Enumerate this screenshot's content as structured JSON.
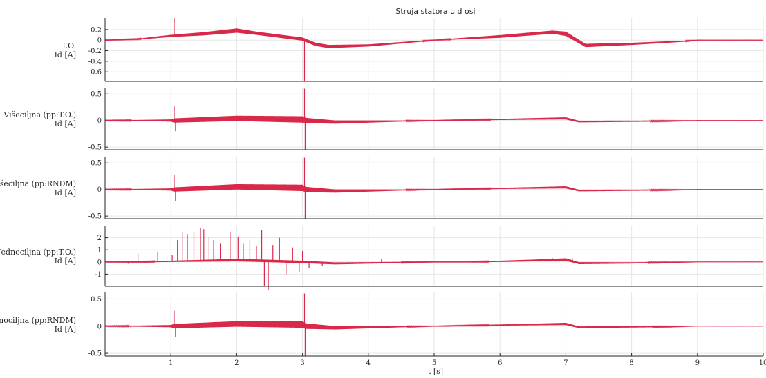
{
  "chart_data": {
    "type": "line",
    "title": "Struja statora u d osi",
    "xlabel": "t [s]",
    "xlim": [
      0,
      10
    ],
    "xticks": [
      "1",
      "2",
      "3",
      "4",
      "5",
      "6",
      "7",
      "8",
      "9",
      "10"
    ],
    "grid": true,
    "series_color": "#d9284a",
    "panels": [
      {
        "ylabel": [
          "T.O.",
          "Id [A]"
        ],
        "ylim": [
          -0.78,
          0.42
        ],
        "yticks": [
          0.2,
          0,
          -0.2,
          -0.4,
          -0.6
        ],
        "ytick_labels": [
          "0.2",
          "0",
          "-0.2",
          "-0.4",
          "-0.6"
        ],
        "envelope_t": [
          0.0,
          0.5,
          1.0,
          1.5,
          2.0,
          2.3,
          3.0,
          3.2,
          3.4,
          4.0,
          4.8,
          5.0,
          6.0,
          6.8,
          7.0,
          7.3,
          8.0,
          8.8,
          9.0,
          10.0
        ],
        "envelope_mid": [
          0.0,
          0.02,
          0.08,
          0.12,
          0.18,
          0.13,
          0.02,
          -0.08,
          -0.12,
          -0.1,
          -0.02,
          0.0,
          0.07,
          0.15,
          0.12,
          -0.1,
          -0.07,
          -0.02,
          0.0,
          0.0
        ],
        "envelope_amp": [
          0.005,
          0.008,
          0.02,
          0.03,
          0.04,
          0.03,
          0.03,
          0.03,
          0.03,
          0.02,
          0.01,
          0.004,
          0.025,
          0.03,
          0.04,
          0.03,
          0.02,
          0.01,
          0.003,
          0.003
        ],
        "spikes": [
          {
            "t": 1.05,
            "v": 0.42
          },
          {
            "t": 3.03,
            "v": -0.78
          }
        ]
      },
      {
        "ylabel": [
          "Višeciljna (pp:T.O.)",
          "Id [A]"
        ],
        "ylim": [
          -0.55,
          0.62
        ],
        "yticks": [
          0.5,
          0,
          -0.5
        ],
        "ytick_labels": [
          "0.5",
          "0",
          "-0.5"
        ],
        "envelope_t": [
          0.0,
          0.5,
          1.0,
          1.05,
          2.0,
          3.0,
          3.05,
          3.5,
          4.5,
          5.0,
          6.0,
          7.0,
          7.2,
          8.5,
          9.0,
          10.0
        ],
        "envelope_mid": [
          0.0,
          0.0,
          0.0,
          0.0,
          0.04,
          0.02,
          0.0,
          -0.03,
          -0.01,
          0.0,
          0.02,
          0.04,
          -0.02,
          -0.01,
          0.0,
          0.0
        ],
        "envelope_amp": [
          0.006,
          0.01,
          0.02,
          0.04,
          0.05,
          0.06,
          0.05,
          0.03,
          0.01,
          0.004,
          0.01,
          0.02,
          0.015,
          0.008,
          0.002,
          0.002
        ],
        "spikes": [
          {
            "t": 1.05,
            "v": 0.28
          },
          {
            "t": 1.07,
            "v": -0.2
          },
          {
            "t": 3.03,
            "v": 0.6
          },
          {
            "t": 3.04,
            "v": -0.55
          }
        ]
      },
      {
        "ylabel": [
          "Višeciljna (pp:RNDM)",
          "Id [A]"
        ],
        "ylim": [
          -0.55,
          0.62
        ],
        "yticks": [
          0.5,
          0,
          -0.5
        ],
        "ytick_labels": [
          "0.5",
          "0",
          "-0.5"
        ],
        "envelope_t": [
          0.0,
          0.5,
          1.0,
          1.05,
          2.0,
          3.0,
          3.05,
          3.5,
          4.5,
          5.0,
          6.0,
          7.0,
          7.2,
          8.5,
          9.0,
          10.0
        ],
        "envelope_mid": [
          0.0,
          0.0,
          0.0,
          0.0,
          0.05,
          0.03,
          0.0,
          -0.03,
          -0.01,
          0.0,
          0.02,
          0.04,
          -0.02,
          -0.01,
          0.0,
          0.0
        ],
        "envelope_amp": [
          0.006,
          0.01,
          0.02,
          0.04,
          0.05,
          0.06,
          0.05,
          0.03,
          0.01,
          0.004,
          0.01,
          0.02,
          0.015,
          0.008,
          0.002,
          0.002
        ],
        "spikes": [
          {
            "t": 1.05,
            "v": 0.28
          },
          {
            "t": 1.07,
            "v": -0.22
          },
          {
            "t": 3.03,
            "v": 0.6
          },
          {
            "t": 3.04,
            "v": -0.55
          }
        ]
      },
      {
        "ylabel": [
          "Jednociljna (pp:T.O.)",
          "Id [A]"
        ],
        "ylim": [
          -2.0,
          3.0
        ],
        "yticks": [
          2,
          1,
          0,
          -1
        ],
        "ytick_labels": [
          "2",
          "1",
          "0",
          "-1"
        ],
        "envelope_t": [
          0.0,
          0.5,
          1.0,
          2.0,
          2.5,
          3.0,
          3.5,
          4.0,
          5.0,
          5.5,
          6.0,
          6.5,
          7.0,
          7.2,
          8.0,
          9.0,
          10.0
        ],
        "envelope_mid": [
          0.0,
          0.0,
          0.05,
          0.15,
          0.08,
          0.0,
          -0.12,
          -0.08,
          0.0,
          0.0,
          0.05,
          0.12,
          0.2,
          -0.1,
          -0.08,
          0.0,
          0.0
        ],
        "envelope_amp": [
          0.02,
          0.03,
          0.05,
          0.1,
          0.1,
          0.1,
          0.08,
          0.06,
          0.02,
          0.02,
          0.05,
          0.07,
          0.1,
          0.08,
          0.05,
          0.01,
          0.01
        ],
        "spikes": [
          {
            "t": 0.35,
            "v": -0.15
          },
          {
            "t": 0.5,
            "v": 0.7
          },
          {
            "t": 0.6,
            "v": -0.1
          },
          {
            "t": 0.8,
            "v": 0.85
          },
          {
            "t": 1.02,
            "v": 0.6
          },
          {
            "t": 1.1,
            "v": 1.8
          },
          {
            "t": 1.18,
            "v": 2.5
          },
          {
            "t": 1.25,
            "v": 2.3
          },
          {
            "t": 1.35,
            "v": 2.5
          },
          {
            "t": 1.45,
            "v": 2.8
          },
          {
            "t": 1.5,
            "v": 2.7
          },
          {
            "t": 1.58,
            "v": 2.1
          },
          {
            "t": 1.65,
            "v": 1.8
          },
          {
            "t": 1.75,
            "v": 1.5
          },
          {
            "t": 1.9,
            "v": 2.5
          },
          {
            "t": 2.02,
            "v": 2.1
          },
          {
            "t": 2.1,
            "v": 1.5
          },
          {
            "t": 2.2,
            "v": 1.8
          },
          {
            "t": 2.3,
            "v": 1.3
          },
          {
            "t": 2.38,
            "v": 2.6
          },
          {
            "t": 2.42,
            "v": -2.0
          },
          {
            "t": 2.48,
            "v": -2.3
          },
          {
            "t": 2.55,
            "v": 1.4
          },
          {
            "t": 2.65,
            "v": 2.0
          },
          {
            "t": 2.75,
            "v": -1.0
          },
          {
            "t": 2.85,
            "v": 1.2
          },
          {
            "t": 2.95,
            "v": -0.8
          },
          {
            "t": 3.0,
            "v": 0.9
          },
          {
            "t": 3.1,
            "v": -0.5
          },
          {
            "t": 3.3,
            "v": -0.35
          },
          {
            "t": 4.2,
            "v": 0.25
          },
          {
            "t": 6.8,
            "v": 0.3
          },
          {
            "t": 7.1,
            "v": 0.3
          }
        ]
      },
      {
        "ylabel": [
          "Jednociljna (pp:RNDM)",
          "Id [A]"
        ],
        "ylim": [
          -0.55,
          0.62
        ],
        "yticks": [
          0.5,
          0,
          -0.5
        ],
        "ytick_labels": [
          "0.5",
          "0",
          "-0.5"
        ],
        "envelope_t": [
          0.0,
          0.5,
          1.0,
          1.05,
          2.0,
          3.0,
          3.05,
          3.5,
          4.5,
          5.0,
          6.0,
          7.0,
          7.2,
          8.5,
          9.0,
          10.0
        ],
        "envelope_mid": [
          0.0,
          0.0,
          0.0,
          0.0,
          0.04,
          0.03,
          0.0,
          -0.03,
          -0.01,
          0.0,
          0.02,
          0.04,
          -0.02,
          -0.01,
          0.0,
          0.0
        ],
        "envelope_amp": [
          0.006,
          0.01,
          0.02,
          0.04,
          0.05,
          0.06,
          0.05,
          0.03,
          0.01,
          0.004,
          0.01,
          0.02,
          0.015,
          0.008,
          0.002,
          0.002
        ],
        "spikes": [
          {
            "t": 1.05,
            "v": 0.28
          },
          {
            "t": 1.07,
            "v": -0.2
          },
          {
            "t": 3.03,
            "v": 0.6
          },
          {
            "t": 3.04,
            "v": -0.55
          }
        ]
      }
    ]
  }
}
